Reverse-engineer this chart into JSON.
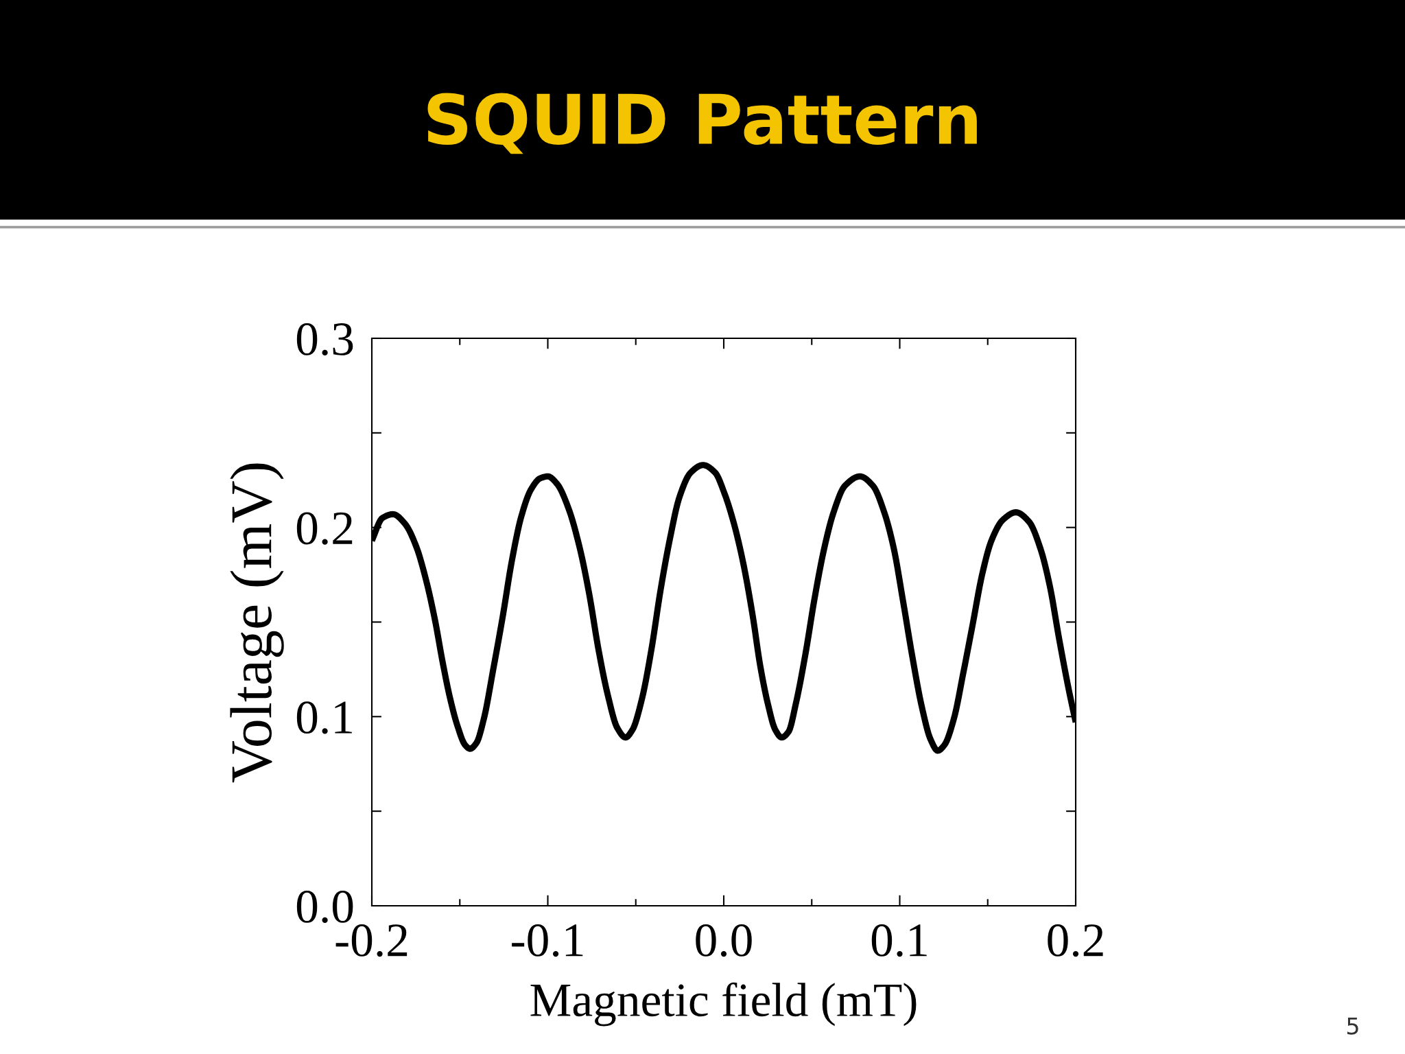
{
  "chart_data": {
    "type": "line",
    "title": "SQUID Pattern",
    "xlabel": "Magnetic field (mT)",
    "ylabel": "Voltage (mV)",
    "annotations": [
      "5"
    ],
    "x": [
      -0.2,
      -0.194,
      -0.188,
      -0.1812,
      -0.1748,
      -0.1694,
      -0.1641,
      -0.1598,
      -0.1556,
      -0.1513,
      -0.147,
      -0.1442,
      -0.1406,
      -0.1363,
      -0.131,
      -0.1256,
      -0.1203,
      -0.115,
      -0.1096,
      -0.1043,
      -0.1,
      -0.0947,
      -0.0882,
      -0.0818,
      -0.0765,
      -0.0711,
      -0.0658,
      -0.0605,
      -0.0558,
      -0.0519,
      -0.0466,
      -0.0412,
      -0.0359,
      -0.0306,
      -0.0252,
      -0.0188,
      -0.0118,
      -0.0049,
      0.0004,
      0.0058,
      0.0111,
      0.0165,
      0.0207,
      0.025,
      0.0293,
      0.0329,
      0.0368,
      0.041,
      0.0464,
      0.0517,
      0.0571,
      0.0624,
      0.0688,
      0.0774,
      0.0848,
      0.0912,
      0.0966,
      0.1019,
      0.1073,
      0.1126,
      0.1175,
      0.1216,
      0.1254,
      0.1308,
      0.1361,
      0.1415,
      0.1468,
      0.1521,
      0.1586,
      0.166,
      0.1735,
      0.1799,
      0.1853,
      0.1906,
      0.1959,
      0.2
    ],
    "series": [
      {
        "color": "#000000",
        "line_style": "solid",
        "values": [
          0.193,
          0.205,
          0.207,
          0.202,
          0.19,
          0.173,
          0.151,
          0.129,
          0.11,
          0.095,
          0.085,
          0.083,
          0.086,
          0.099,
          0.125,
          0.153,
          0.183,
          0.206,
          0.22,
          0.226,
          0.227,
          0.223,
          0.21,
          0.189,
          0.165,
          0.135,
          0.111,
          0.094,
          0.089,
          0.093,
          0.109,
          0.135,
          0.167,
          0.194,
          0.216,
          0.229,
          0.233,
          0.229,
          0.218,
          0.202,
          0.181,
          0.153,
          0.127,
          0.107,
          0.093,
          0.089,
          0.092,
          0.107,
          0.133,
          0.163,
          0.189,
          0.208,
          0.222,
          0.227,
          0.222,
          0.208,
          0.189,
          0.161,
          0.131,
          0.105,
          0.088,
          0.082,
          0.085,
          0.099,
          0.123,
          0.149,
          0.175,
          0.193,
          0.204,
          0.208,
          0.203,
          0.189,
          0.169,
          0.141,
          0.115,
          0.097
        ]
      }
    ],
    "xlim": [
      -0.2,
      0.2
    ],
    "ylim": [
      0.0,
      0.3
    ],
    "xticks": [
      -0.2,
      {
        "value": -0.15,
        "label": null
      },
      -0.1,
      {
        "value": -0.05,
        "label": null
      },
      {
        "value": 0,
        "label": "0.0"
      },
      {
        "value": 0.05,
        "label": null
      },
      0.1,
      {
        "value": 0.15,
        "label": null
      },
      0.2
    ],
    "yticks": [
      {
        "value": 0,
        "label": "0.0"
      },
      {
        "value": 0.05,
        "label": null
      },
      0.1,
      {
        "value": 0.15,
        "label": null
      },
      0.2,
      {
        "value": 0.25,
        "label": null
      },
      0.3
    ]
  }
}
